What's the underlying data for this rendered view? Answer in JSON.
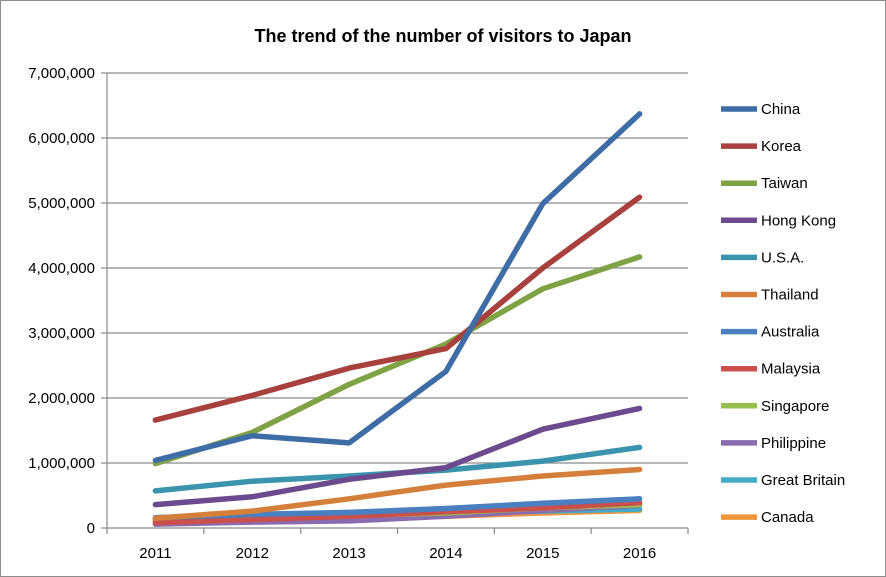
{
  "chart_data": {
    "type": "line",
    "title": "The trend of the number of visitors to Japan",
    "xlabel": "",
    "ylabel": "",
    "categories": [
      "2011",
      "2012",
      "2013",
      "2014",
      "2015",
      "2016"
    ],
    "ylim": [
      0,
      7000000
    ],
    "yticks": [
      {
        "value": 0,
        "label": "0"
      },
      {
        "value": 1000000,
        "label": "1,000,000"
      },
      {
        "value": 2000000,
        "label": "2,000,000"
      },
      {
        "value": 3000000,
        "label": "3,000,000"
      },
      {
        "value": 4000000,
        "label": "4,000,000"
      },
      {
        "value": 5000000,
        "label": "5,000,000"
      },
      {
        "value": 6000000,
        "label": "6,000,000"
      },
      {
        "value": 7000000,
        "label": "7,000,000"
      }
    ],
    "grid": true,
    "legend_position": "right",
    "series": [
      {
        "name": "China",
        "color": "#3e6da6",
        "values": [
          1040000,
          1420000,
          1310000,
          2410000,
          4990000,
          6370000
        ]
      },
      {
        "name": "Korea",
        "color": "#a8403d",
        "values": [
          1660000,
          2040000,
          2460000,
          2760000,
          4000000,
          5090000
        ]
      },
      {
        "name": "Taiwan",
        "color": "#7fa245",
        "values": [
          990000,
          1470000,
          2210000,
          2830000,
          3680000,
          4170000
        ]
      },
      {
        "name": "Hong Kong",
        "color": "#6b4a8e",
        "values": [
          360000,
          480000,
          750000,
          930000,
          1520000,
          1840000
        ]
      },
      {
        "name": "U.S.A.",
        "color": "#3a94ad",
        "values": [
          570000,
          720000,
          800000,
          890000,
          1030000,
          1240000
        ]
      },
      {
        "name": "Thailand",
        "color": "#d4803b",
        "values": [
          150000,
          260000,
          450000,
          660000,
          800000,
          900000
        ]
      },
      {
        "name": "Australia",
        "color": "#4a7fc0",
        "values": [
          160000,
          210000,
          240000,
          300000,
          380000,
          450000
        ]
      },
      {
        "name": "Malaysia",
        "color": "#c9504c",
        "values": [
          80000,
          130000,
          180000,
          250000,
          310000,
          390000
        ]
      },
      {
        "name": "Singapore",
        "color": "#96bf4d",
        "values": [
          110000,
          140000,
          190000,
          230000,
          310000,
          360000
        ]
      },
      {
        "name": "Philippine",
        "color": "#8b6bb0",
        "values": [
          60000,
          90000,
          110000,
          180000,
          270000,
          350000
        ]
      },
      {
        "name": "Great Britain",
        "color": "#42acc8",
        "values": [
          140000,
          170000,
          190000,
          220000,
          260000,
          290000
        ]
      },
      {
        "name": "Canada",
        "color": "#f3953b",
        "values": [
          100000,
          110000,
          150000,
          180000,
          230000,
          270000
        ]
      }
    ]
  }
}
